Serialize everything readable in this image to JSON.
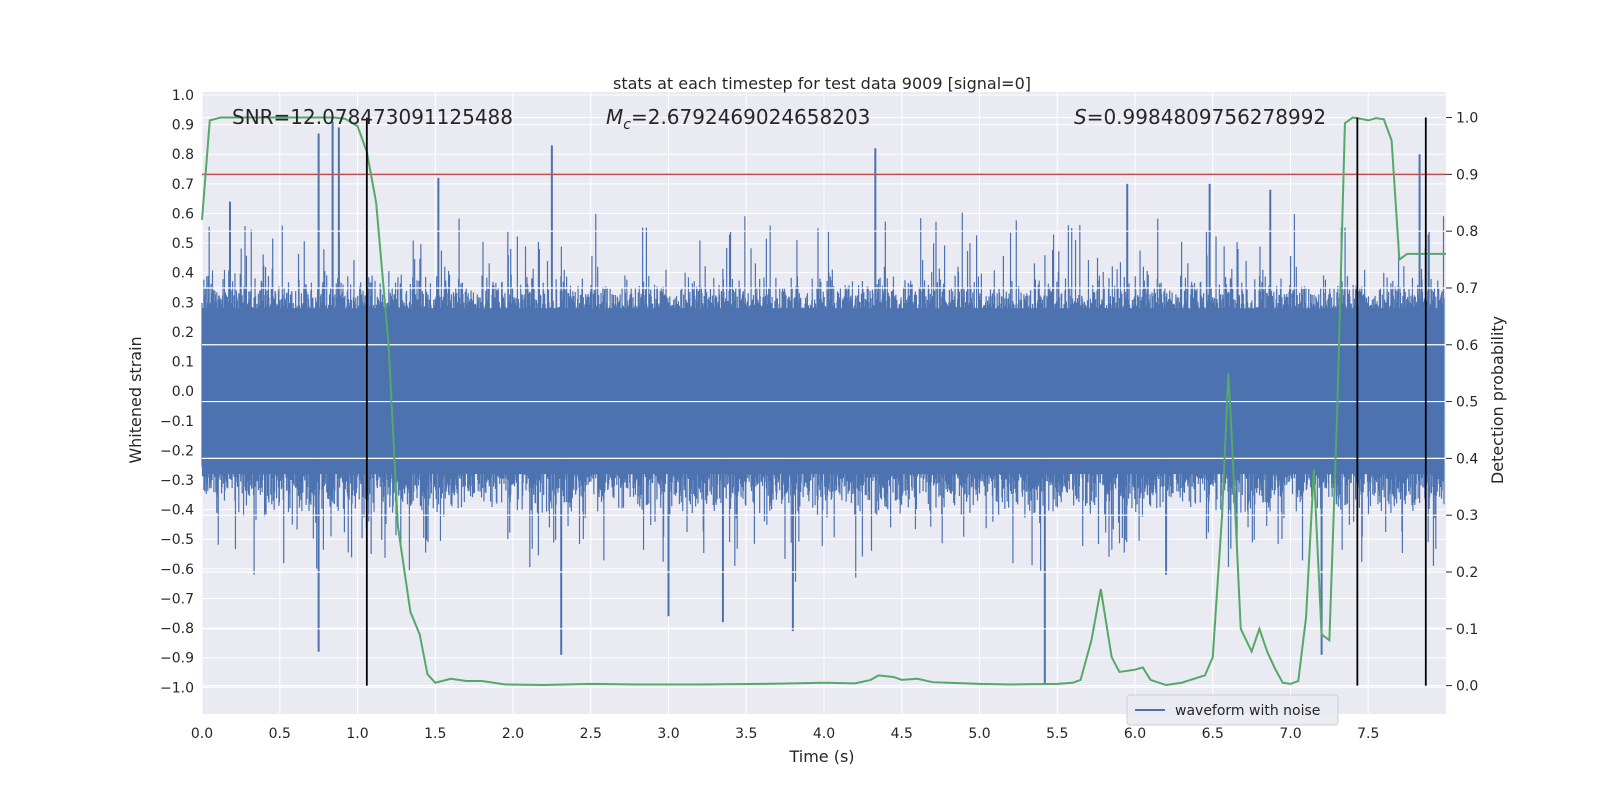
{
  "chart_data": {
    "type": "line",
    "title": "stats at each timestep for test data 9009 [signal=0]",
    "xlabel": "Time (s)",
    "ylabel": "Whitened strain",
    "y2label": "Detection probability",
    "xlim": [
      0.0,
      8.0
    ],
    "ylim": [
      -1.09,
      1.01
    ],
    "y2lim": [
      -0.05,
      1.045
    ],
    "x_ticks": [
      0.0,
      0.5,
      1.0,
      1.5,
      2.0,
      2.5,
      3.0,
      3.5,
      4.0,
      4.5,
      5.0,
      5.5,
      6.0,
      6.5,
      7.0,
      7.5
    ],
    "x_tick_labels": [
      "0.0",
      "0.5",
      "1.0",
      "1.5",
      "2.0",
      "2.5",
      "3.0",
      "3.5",
      "4.0",
      "4.5",
      "5.0",
      "5.5",
      "6.0",
      "6.5",
      "7.0",
      "7.5"
    ],
    "y_ticks": [
      1.0,
      0.9,
      0.8,
      0.7,
      0.6,
      0.5,
      0.4,
      0.3,
      0.2,
      0.1,
      0.0,
      -0.1,
      -0.2,
      -0.3,
      -0.4,
      -0.5,
      -0.6,
      -0.7,
      -0.8,
      -0.9,
      -1.0
    ],
    "y_tick_labels": [
      "1.0",
      "0.9",
      "0.8",
      "0.7",
      "0.6",
      "0.5",
      "0.4",
      "0.3",
      "0.2",
      "0.1",
      "0.0",
      "−0.1",
      "−0.2",
      "−0.3",
      "−0.4",
      "−0.5",
      "−0.6",
      "−0.7",
      "−0.8",
      "−0.9",
      "−1.0"
    ],
    "y2_ticks": [
      1.0,
      0.9,
      0.8,
      0.7,
      0.6,
      0.5,
      0.4,
      0.3,
      0.2,
      0.1,
      0.0
    ],
    "y2_tick_labels": [
      "1.0",
      "0.9",
      "0.8",
      "0.7",
      "0.6",
      "0.5",
      "0.4",
      "0.3",
      "0.2",
      "0.1",
      "0.0"
    ],
    "annotations": {
      "snr": "SNR=12.078473091125488",
      "mc_symbol": "M",
      "mc_sub": "c",
      "mc_value": "=2.6792469024658203",
      "s_symbol": "S",
      "s_value": "=0.9984809756278992"
    },
    "legend": {
      "label": "waveform with noise",
      "location": "lower right"
    },
    "threshold_line": {
      "y2": 0.9,
      "color": "#c44e52"
    },
    "vertical_lines": [
      1.06,
      7.43,
      7.87
    ],
    "series": [
      {
        "name": "waveform with noise",
        "color": "#4c72b0",
        "noise_band": {
          "typical_amplitude": 0.33,
          "max_peak": 0.91,
          "min_peak": -0.99
        },
        "peaks": [
          [
            0.18,
            0.64
          ],
          [
            0.75,
            0.87
          ],
          [
            0.84,
            0.91
          ],
          [
            0.88,
            0.89
          ],
          [
            1.52,
            0.72
          ],
          [
            2.25,
            0.83
          ],
          [
            4.33,
            0.82
          ],
          [
            5.95,
            0.7
          ],
          [
            6.48,
            0.7
          ],
          [
            6.87,
            0.68
          ],
          [
            7.83,
            0.8
          ]
        ],
        "troughs": [
          [
            0.75,
            -0.88
          ],
          [
            2.31,
            -0.89
          ],
          [
            3.0,
            -0.76
          ],
          [
            3.35,
            -0.78
          ],
          [
            3.8,
            -0.81
          ],
          [
            5.42,
            -0.99
          ],
          [
            7.2,
            -0.89
          ],
          [
            6.2,
            -0.62
          ]
        ]
      },
      {
        "name": "detection probability",
        "color": "#55a868",
        "axis": "y2",
        "x": [
          0.0,
          0.05,
          0.12,
          0.3,
          0.6,
          0.85,
          0.92,
          1.0,
          1.06,
          1.12,
          1.2,
          1.26,
          1.34,
          1.4,
          1.45,
          1.5,
          1.6,
          1.7,
          1.8,
          1.95,
          2.2,
          2.5,
          2.8,
          3.2,
          3.6,
          3.8,
          4.0,
          4.2,
          4.3,
          4.35,
          4.45,
          4.5,
          4.6,
          4.7,
          4.8,
          5.0,
          5.2,
          5.5,
          5.6,
          5.65,
          5.72,
          5.78,
          5.85,
          5.9,
          6.0,
          6.05,
          6.1,
          6.2,
          6.3,
          6.45,
          6.5,
          6.56,
          6.6,
          6.62,
          6.68,
          6.75,
          6.8,
          6.85,
          6.9,
          6.95,
          7.0,
          7.05,
          7.1,
          7.15,
          7.2,
          7.25,
          7.3,
          7.35,
          7.4,
          7.45,
          7.5,
          7.55,
          7.6,
          7.65,
          7.7,
          7.75,
          7.8,
          7.85,
          7.9,
          7.95,
          8.0
        ],
        "y": [
          0.82,
          0.995,
          1.0,
          1.0,
          1.0,
          1.0,
          0.998,
          0.985,
          0.94,
          0.85,
          0.6,
          0.28,
          0.13,
          0.09,
          0.02,
          0.005,
          0.012,
          0.008,
          0.008,
          0.002,
          0.001,
          0.003,
          0.002,
          0.002,
          0.003,
          0.004,
          0.005,
          0.004,
          0.01,
          0.018,
          0.015,
          0.01,
          0.012,
          0.006,
          0.005,
          0.003,
          0.002,
          0.003,
          0.005,
          0.01,
          0.08,
          0.17,
          0.05,
          0.024,
          0.028,
          0.032,
          0.01,
          0.001,
          0.005,
          0.018,
          0.05,
          0.3,
          0.55,
          0.45,
          0.1,
          0.06,
          0.1,
          0.06,
          0.03,
          0.005,
          0.003,
          0.008,
          0.12,
          0.38,
          0.09,
          0.08,
          0.48,
          0.99,
          1.0,
          0.998,
          0.995,
          0.999,
          0.997,
          0.96,
          0.75,
          0.76,
          0.76,
          0.76,
          0.76,
          0.76,
          0.76
        ]
      }
    ]
  }
}
